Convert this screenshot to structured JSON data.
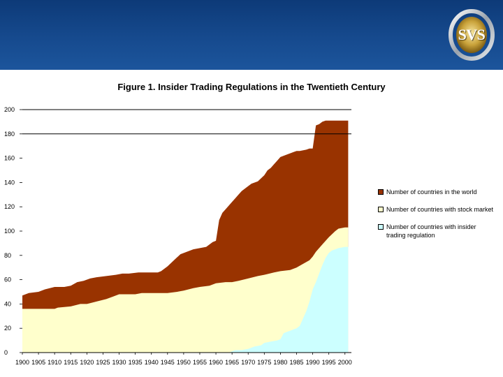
{
  "header": {
    "logo_text": "SVS"
  },
  "chart_data": {
    "type": "area",
    "title": "Figure 1. Insider Trading Regulations in the Twentieth Century",
    "xlabel": "",
    "ylabel": "",
    "xlim": [
      1900,
      2002
    ],
    "ylim": [
      0,
      200
    ],
    "x_ticks": [
      1900,
      1905,
      1910,
      1915,
      1920,
      1925,
      1930,
      1935,
      1940,
      1945,
      1950,
      1955,
      1960,
      1965,
      1970,
      1975,
      1980,
      1985,
      1990,
      1995,
      2000
    ],
    "y_ticks": [
      0,
      20,
      40,
      60,
      80,
      100,
      120,
      140,
      160,
      180,
      200
    ],
    "grid_y": [
      180,
      200
    ],
    "legend_position": "right",
    "series": [
      {
        "name": "Number of countries in the world",
        "color": "#993300",
        "points": [
          [
            1900,
            47
          ],
          [
            1902,
            49
          ],
          [
            1905,
            50
          ],
          [
            1907,
            52
          ],
          [
            1910,
            54
          ],
          [
            1913,
            54
          ],
          [
            1915,
            55
          ],
          [
            1917,
            58
          ],
          [
            1919,
            59
          ],
          [
            1921,
            61
          ],
          [
            1923,
            62
          ],
          [
            1926,
            63
          ],
          [
            1929,
            64
          ],
          [
            1931,
            65
          ],
          [
            1933,
            65
          ],
          [
            1936,
            66
          ],
          [
            1940,
            66
          ],
          [
            1942,
            66
          ],
          [
            1943,
            67
          ],
          [
            1945,
            71
          ],
          [
            1947,
            76
          ],
          [
            1949,
            81
          ],
          [
            1951,
            83
          ],
          [
            1953,
            85
          ],
          [
            1955,
            86
          ],
          [
            1957,
            87
          ],
          [
            1959,
            91
          ],
          [
            1960,
            92
          ],
          [
            1961,
            109
          ],
          [
            1962,
            115
          ],
          [
            1963,
            118
          ],
          [
            1964,
            121
          ],
          [
            1965,
            124
          ],
          [
            1966,
            127
          ],
          [
            1967,
            130
          ],
          [
            1968,
            133
          ],
          [
            1969,
            135
          ],
          [
            1970,
            137
          ],
          [
            1971,
            139
          ],
          [
            1973,
            141
          ],
          [
            1975,
            146
          ],
          [
            1976,
            150
          ],
          [
            1977,
            152
          ],
          [
            1978,
            155
          ],
          [
            1979,
            158
          ],
          [
            1980,
            161
          ],
          [
            1981,
            162
          ],
          [
            1982,
            163
          ],
          [
            1983,
            164
          ],
          [
            1984,
            165
          ],
          [
            1985,
            166
          ],
          [
            1986,
            166
          ],
          [
            1988,
            167
          ],
          [
            1989,
            168
          ],
          [
            1990,
            168
          ],
          [
            1991,
            187
          ],
          [
            1992,
            188
          ],
          [
            1993,
            190
          ],
          [
            1994,
            191
          ],
          [
            1996,
            191
          ],
          [
            1998,
            191
          ],
          [
            2000,
            191
          ],
          [
            2001,
            191
          ]
        ]
      },
      {
        "name": "Number of countries with stock market",
        "color": "#ffffcc",
        "points": [
          [
            1900,
            36
          ],
          [
            1910,
            36
          ],
          [
            1911,
            37
          ],
          [
            1915,
            38
          ],
          [
            1918,
            40
          ],
          [
            1920,
            40
          ],
          [
            1923,
            42
          ],
          [
            1926,
            44
          ],
          [
            1928,
            46
          ],
          [
            1930,
            48
          ],
          [
            1935,
            48
          ],
          [
            1937,
            49
          ],
          [
            1945,
            49
          ],
          [
            1948,
            50
          ],
          [
            1950,
            51
          ],
          [
            1953,
            53
          ],
          [
            1955,
            54
          ],
          [
            1958,
            55
          ],
          [
            1960,
            57
          ],
          [
            1963,
            58
          ],
          [
            1965,
            58
          ],
          [
            1967,
            59
          ],
          [
            1970,
            61
          ],
          [
            1973,
            63
          ],
          [
            1975,
            64
          ],
          [
            1978,
            66
          ],
          [
            1980,
            67
          ],
          [
            1983,
            68
          ],
          [
            1985,
            70
          ],
          [
            1987,
            73
          ],
          [
            1989,
            76
          ],
          [
            1990,
            79
          ],
          [
            1991,
            83
          ],
          [
            1993,
            89
          ],
          [
            1995,
            95
          ],
          [
            1997,
            100
          ],
          [
            1998,
            102
          ],
          [
            2000,
            103
          ],
          [
            2001,
            103
          ]
        ]
      },
      {
        "name": "Number of countries with insider trading regulation",
        "color": "#ccffff",
        "points": [
          [
            1900,
            0
          ],
          [
            1964,
            0
          ],
          [
            1965,
            1
          ],
          [
            1966,
            2
          ],
          [
            1968,
            2
          ],
          [
            1970,
            3
          ],
          [
            1972,
            5
          ],
          [
            1974,
            6
          ],
          [
            1975,
            8
          ],
          [
            1977,
            9
          ],
          [
            1979,
            10
          ],
          [
            1980,
            11
          ],
          [
            1981,
            16
          ],
          [
            1982,
            17
          ],
          [
            1983,
            18
          ],
          [
            1984,
            19
          ],
          [
            1985,
            20
          ],
          [
            1986,
            22
          ],
          [
            1987,
            28
          ],
          [
            1988,
            34
          ],
          [
            1989,
            42
          ],
          [
            1990,
            52
          ],
          [
            1991,
            58
          ],
          [
            1992,
            65
          ],
          [
            1993,
            72
          ],
          [
            1994,
            78
          ],
          [
            1995,
            82
          ],
          [
            1996,
            84
          ],
          [
            1997,
            85
          ],
          [
            1998,
            86
          ],
          [
            2000,
            87
          ],
          [
            2001,
            87
          ]
        ]
      }
    ]
  },
  "legend": {
    "items": [
      {
        "label": "Number of countries in the world",
        "color": "#993300"
      },
      {
        "label": "Number of countries with  stock market",
        "color": "#ffffcc"
      },
      {
        "label": "Number of countries with insider trading regulation",
        "color": "#ccffff"
      }
    ]
  }
}
